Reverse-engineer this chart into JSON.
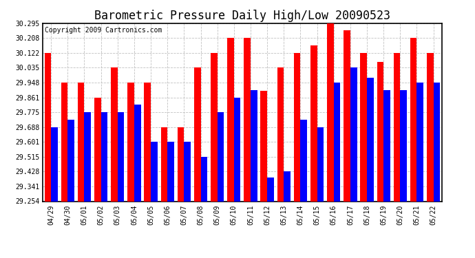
{
  "title": "Barometric Pressure Daily High/Low 20090523",
  "copyright": "Copyright 2009 Cartronics.com",
  "dates": [
    "04/29",
    "04/30",
    "05/01",
    "05/02",
    "05/03",
    "05/04",
    "05/05",
    "05/06",
    "05/07",
    "05/08",
    "05/09",
    "05/10",
    "05/11",
    "05/12",
    "05/13",
    "05/14",
    "05/15",
    "05/16",
    "05/17",
    "05/18",
    "05/19",
    "05/20",
    "05/21",
    "05/22"
  ],
  "high": [
    30.122,
    29.948,
    29.948,
    29.861,
    30.035,
    29.948,
    29.948,
    29.688,
    29.688,
    30.035,
    30.122,
    30.208,
    30.208,
    29.9,
    30.035,
    30.122,
    30.165,
    30.295,
    30.252,
    30.122,
    30.07,
    30.122,
    30.208,
    30.122
  ],
  "low": [
    29.688,
    29.731,
    29.775,
    29.775,
    29.775,
    29.818,
    29.601,
    29.601,
    29.601,
    29.515,
    29.775,
    29.861,
    29.905,
    29.392,
    29.428,
    29.731,
    29.688,
    29.948,
    30.035,
    29.975,
    29.905,
    29.905,
    29.948,
    29.948
  ],
  "ymin": 29.254,
  "ymax": 30.295,
  "yticks": [
    29.254,
    29.341,
    29.428,
    29.515,
    29.601,
    29.688,
    29.775,
    29.861,
    29.948,
    30.035,
    30.122,
    30.208,
    30.295
  ],
  "bar_color_high": "#ff0000",
  "bar_color_low": "#0000ff",
  "background_color": "#ffffff",
  "plot_bg_color": "#ffffff",
  "grid_color": "#c0c0c0",
  "title_fontsize": 12,
  "copyright_fontsize": 7,
  "tick_fontsize": 7
}
